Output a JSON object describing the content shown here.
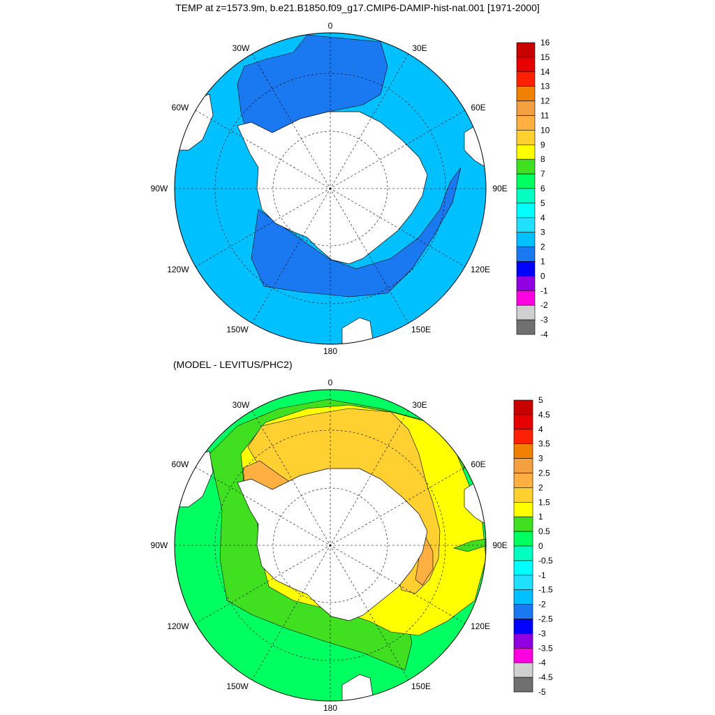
{
  "title": "TEMP at z=1573.9m, b.e21.B1850.f09_g17.CMIP6-DAMIP-hist-nat.001 [1971-2000]",
  "subtitle": "(MODEL - LEVITUS/PHC2)",
  "longitude_labels": {
    "top": "0",
    "top_left": "30W",
    "top_right": "30E",
    "upper_left": "60W",
    "upper_right": "60E",
    "left": "90W",
    "right": "90E",
    "lower_left": "120W",
    "lower_right": "120E",
    "bottom_left": "150W",
    "bottom_right": "150E",
    "bottom": "180"
  },
  "colorbar_top": {
    "labels": [
      "16",
      "15",
      "14",
      "13",
      "12",
      "11",
      "10",
      "9",
      "8",
      "7",
      "6",
      "5",
      "4",
      "3",
      "2",
      "1",
      "0",
      "-1",
      "-2",
      "-3",
      "-4"
    ],
    "colors": [
      "#c80000",
      "#e60000",
      "#ff2000",
      "#f08000",
      "#f4a040",
      "#ffb040",
      "#ffd030",
      "#ffff00",
      "#40e020",
      "#00ff60",
      "#00ffc0",
      "#00ffff",
      "#20e0ff",
      "#00c0ff",
      "#1a78f0",
      "#0000ff",
      "#9000e0",
      "#ff00e0",
      "#d0d0d0",
      "#707070"
    ]
  },
  "colorbar_bottom": {
    "labels": [
      "5",
      "4.5",
      "4",
      "3.5",
      "3",
      "2.5",
      "2",
      "1.5",
      "1",
      "0.5",
      "0",
      "-0.5",
      "-1",
      "-1.5",
      "-2",
      "-2.5",
      "-3",
      "-3.5",
      "-4",
      "-4.5",
      "-5"
    ],
    "colors": [
      "#c80000",
      "#e60000",
      "#ff2000",
      "#f08000",
      "#f4a040",
      "#ffb040",
      "#ffd030",
      "#ffff00",
      "#40e020",
      "#00ff60",
      "#00ffc0",
      "#00ffff",
      "#20e0ff",
      "#00c0ff",
      "#1a78f0",
      "#0000ff",
      "#9000e0",
      "#ff00e0",
      "#d0d0d0",
      "#707070"
    ]
  },
  "colors": {
    "top_background": "#00c0ff",
    "top_band": "#1a78f0",
    "land": "#ffffff",
    "bottom_outer": "#00ff60",
    "bottom_green": "#40e020",
    "bottom_yellow": "#ffff00",
    "bottom_gold": "#ffd030",
    "bottom_orange": "#ffb040"
  }
}
